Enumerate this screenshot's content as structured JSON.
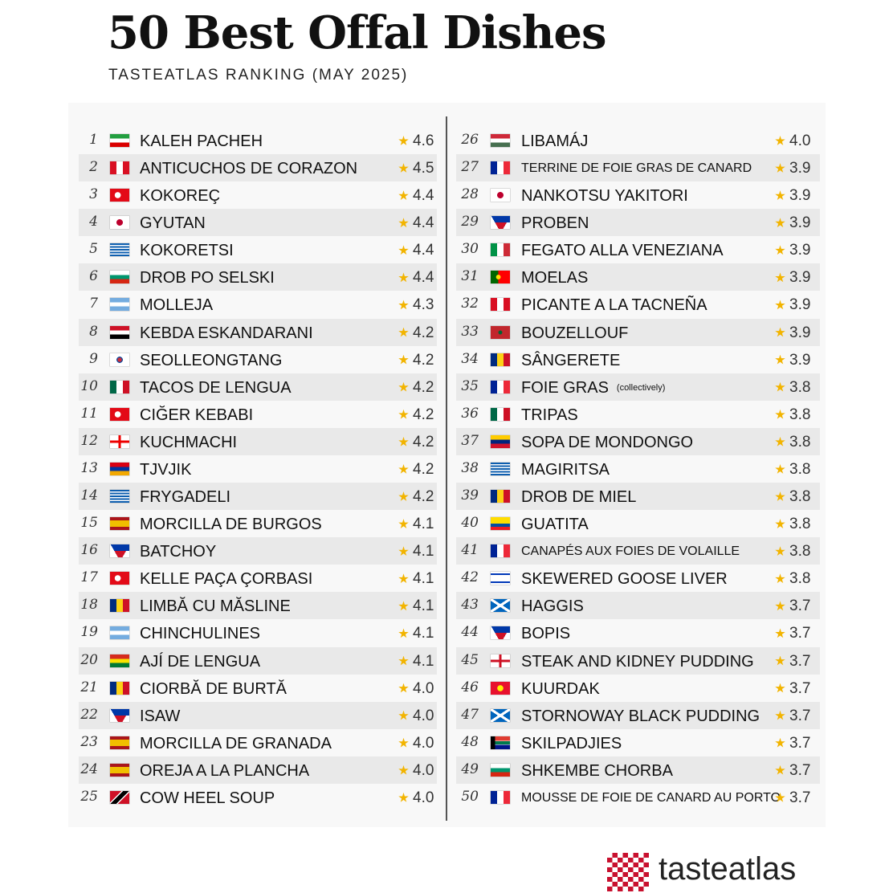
{
  "header": {
    "title": "50 Best Offal Dishes",
    "subtitle": "TASTEATLAS RANKING (MAY 2025)"
  },
  "items": [
    {
      "rank": 1,
      "name": "KALEH PACHEH",
      "rating": "4.6"
    },
    {
      "rank": 2,
      "name": "ANTICUCHOS DE CORAZON",
      "rating": "4.5"
    },
    {
      "rank": 3,
      "name": "KOKOREÇ",
      "rating": "4.4"
    },
    {
      "rank": 4,
      "name": "GYUTAN",
      "rating": "4.4"
    },
    {
      "rank": 5,
      "name": "KOKORETSI",
      "rating": "4.4"
    },
    {
      "rank": 6,
      "name": "DROB PO SELSKI",
      "rating": "4.4"
    },
    {
      "rank": 7,
      "name": "MOLLEJA",
      "rating": "4.3"
    },
    {
      "rank": 8,
      "name": "KEBDA ESKANDARANI",
      "rating": "4.2"
    },
    {
      "rank": 9,
      "name": "SEOLLEONGTANG",
      "rating": "4.2"
    },
    {
      "rank": 10,
      "name": "TACOS DE LENGUA",
      "rating": "4.2"
    },
    {
      "rank": 11,
      "name": "CIĞER KEBABI",
      "rating": "4.2"
    },
    {
      "rank": 12,
      "name": "KUCHMACHI",
      "rating": "4.2"
    },
    {
      "rank": 13,
      "name": "TJVJIK",
      "rating": "4.2"
    },
    {
      "rank": 14,
      "name": "FRYGADELI",
      "rating": "4.2"
    },
    {
      "rank": 15,
      "name": "MORCILLA DE BURGOS",
      "rating": "4.1"
    },
    {
      "rank": 16,
      "name": "BATCHOY",
      "rating": "4.1"
    },
    {
      "rank": 17,
      "name": "KELLE PAÇA ÇORBASI",
      "rating": "4.1"
    },
    {
      "rank": 18,
      "name": "LIMBĂ CU MĂSLINE",
      "rating": "4.1"
    },
    {
      "rank": 19,
      "name": "CHINCHULINES",
      "rating": "4.1"
    },
    {
      "rank": 20,
      "name": "AJÍ DE LENGUA",
      "rating": "4.1"
    },
    {
      "rank": 21,
      "name": "CIORBĂ DE BURTĂ",
      "rating": "4.0"
    },
    {
      "rank": 22,
      "name": "ISAW",
      "rating": "4.0"
    },
    {
      "rank": 23,
      "name": "MORCILLA DE GRANADA",
      "rating": "4.0"
    },
    {
      "rank": 24,
      "name": "OREJA A LA PLANCHA",
      "rating": "4.0"
    },
    {
      "rank": 25,
      "name": "COW HEEL SOUP",
      "rating": "4.0"
    },
    {
      "rank": 26,
      "name": "LIBAMÁJ",
      "rating": "4.0"
    },
    {
      "rank": 27,
      "name": "TERRINE DE FOIE GRAS DE CANARD",
      "rating": "3.9"
    },
    {
      "rank": 28,
      "name": "NANKOTSU YAKITORI",
      "rating": "3.9"
    },
    {
      "rank": 29,
      "name": "PROBEN",
      "rating": "3.9"
    },
    {
      "rank": 30,
      "name": "FEGATO ALLA VENEZIANA",
      "rating": "3.9"
    },
    {
      "rank": 31,
      "name": "MOELAS",
      "rating": "3.9"
    },
    {
      "rank": 32,
      "name": "PICANTE A LA TACNEÑA",
      "rating": "3.9"
    },
    {
      "rank": 33,
      "name": "BOUZELLOUF",
      "rating": "3.9"
    },
    {
      "rank": 34,
      "name": "SÂNGERETE",
      "rating": "3.9"
    },
    {
      "rank": 35,
      "name": "FOIE GRAS",
      "note": "(collectively)",
      "rating": "3.8"
    },
    {
      "rank": 36,
      "name": "TRIPAS",
      "rating": "3.8"
    },
    {
      "rank": 37,
      "name": "SOPA DE MONDONGO",
      "rating": "3.8"
    },
    {
      "rank": 38,
      "name": "MAGIRITSA",
      "rating": "3.8"
    },
    {
      "rank": 39,
      "name": "DROB DE MIEL",
      "rating": "3.8"
    },
    {
      "rank": 40,
      "name": "GUATITA",
      "rating": "3.8"
    },
    {
      "rank": 41,
      "name": "CANAPÉS AUX FOIES DE VOLAILLE",
      "rating": "3.8"
    },
    {
      "rank": 42,
      "name": "SKEWERED GOOSE LIVER",
      "rating": "3.8"
    },
    {
      "rank": 43,
      "name": "HAGGIS",
      "rating": "3.7"
    },
    {
      "rank": 44,
      "name": "BOPIS",
      "rating": "3.7"
    },
    {
      "rank": 45,
      "name": "STEAK AND KIDNEY PUDDING",
      "rating": "3.7"
    },
    {
      "rank": 46,
      "name": "KUURDAK",
      "rating": "3.7"
    },
    {
      "rank": 47,
      "name": "STORNOWAY BLACK PUDDING",
      "rating": "3.7"
    },
    {
      "rank": 48,
      "name": "SKILPADJIES",
      "rating": "3.7"
    },
    {
      "rank": 49,
      "name": "SHKEMBE CHORBA",
      "rating": "3.7"
    },
    {
      "rank": 50,
      "name": "MOUSSE DE FOIE DE CANARD AU PORTO",
      "rating": "3.7"
    }
  ],
  "logo": {
    "text": "tasteatlas"
  }
}
